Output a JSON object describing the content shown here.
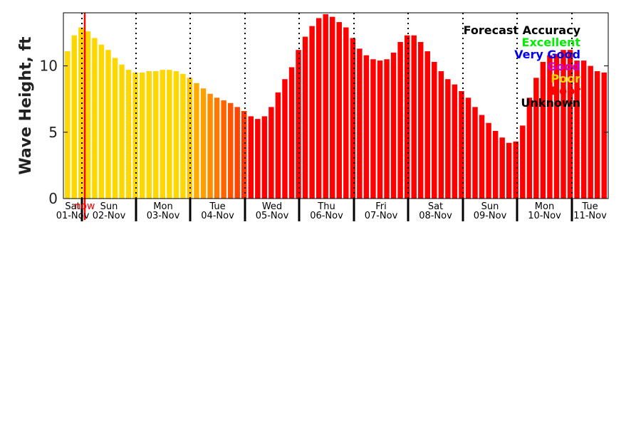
{
  "chart_data": {
    "type": "bar",
    "ylabel": "Wave Height, ft",
    "ylim": [
      0,
      14
    ],
    "yticks": [
      0,
      5,
      10
    ],
    "now_label": "now",
    "days": [
      {
        "name": "Sat",
        "date": "01-Nov"
      },
      {
        "name": "Sun",
        "date": "02-Nov"
      },
      {
        "name": "Mon",
        "date": "03-Nov"
      },
      {
        "name": "Tue",
        "date": "04-Nov"
      },
      {
        "name": "Wed",
        "date": "05-Nov"
      },
      {
        "name": "Thu",
        "date": "06-Nov"
      },
      {
        "name": "Fri",
        "date": "07-Nov"
      },
      {
        "name": "Sat",
        "date": "08-Nov"
      },
      {
        "name": "Sun",
        "date": "09-Nov"
      },
      {
        "name": "Mon",
        "date": "10-Nov"
      },
      {
        "name": "Tue",
        "date": "11-Nov"
      }
    ],
    "legend": {
      "title": "Forecast Accuracy",
      "entries": [
        {
          "label": "Excellent",
          "color": "#00ee00"
        },
        {
          "label": "Very Good",
          "color": "#0000ee"
        },
        {
          "label": "Good",
          "color": "#cc00cc"
        },
        {
          "label": "Poor",
          "color": "#ffd700"
        },
        {
          "label": "Poor",
          "color": "#ff0000"
        },
        {
          "label": "Unknown",
          "color": "#000000"
        }
      ]
    },
    "values": [
      11.1,
      12.3,
      12.9,
      12.6,
      12.1,
      11.6,
      11.2,
      10.6,
      10.1,
      9.7,
      9.5,
      9.5,
      9.6,
      9.6,
      9.7,
      9.7,
      9.6,
      9.4,
      9.1,
      8.7,
      8.3,
      7.9,
      7.6,
      7.4,
      7.2,
      6.9,
      6.6,
      6.2,
      6.0,
      6.2,
      6.9,
      8.0,
      9.0,
      9.9,
      11.2,
      12.2,
      13.0,
      13.6,
      13.9,
      13.7,
      13.3,
      12.9,
      12.1,
      11.3,
      10.8,
      10.5,
      10.4,
      10.5,
      11.0,
      11.8,
      12.3,
      12.3,
      11.8,
      11.1,
      10.3,
      9.6,
      9.0,
      8.6,
      8.1,
      7.6,
      6.9,
      6.3,
      5.7,
      5.1,
      4.6,
      4.2,
      4.3,
      5.5,
      7.6,
      9.1,
      10.3,
      10.8,
      10.9,
      11.2,
      11.2,
      10.4,
      10.4,
      10.0,
      9.6,
      9.5
    ],
    "colors": [
      "#ffd700",
      "#ffd700",
      "#ffd700",
      "#ffd700",
      "#ffd700",
      "#ffd700",
      "#ffd700",
      "#ffd700",
      "#ffd700",
      "#ffd700",
      "#ffd700",
      "#ffd700",
      "#ffd700",
      "#ffd700",
      "#ffd700",
      "#ffd700",
      "#ffd700",
      "#ffd700",
      "#ffc400",
      "#ffaa00",
      "#ffa000",
      "#ff8c00",
      "#ff7800",
      "#ff6400",
      "#ff5500",
      "#ff4400",
      "#ff3300",
      "#ff0000",
      "#ff0000",
      "#ff0000",
      "#ff0000",
      "#ff0000",
      "#ff0000",
      "#ff0000",
      "#ff0000",
      "#ff0000",
      "#ff0000",
      "#ff0000",
      "#ff0000",
      "#ff0000",
      "#ff0000",
      "#ff0000",
      "#ff0000",
      "#ff0000",
      "#ff0000",
      "#ff0000",
      "#ff0000",
      "#ff0000",
      "#ff0000",
      "#ff0000",
      "#ff0000",
      "#ff0000",
      "#ff0000",
      "#ff0000",
      "#ff0000",
      "#ff0000",
      "#ff0000",
      "#ff0000",
      "#ff0000",
      "#ff0000",
      "#ff0000",
      "#ff0000",
      "#ff0000",
      "#ff0000",
      "#ff0000",
      "#ff0000",
      "#ff0000",
      "#ff0000",
      "#ff0000",
      "#ff0000",
      "#ff0000",
      "#ff0000",
      "#ff0000",
      "#ff0000",
      "#ff0000",
      "#ff0000",
      "#ff0000",
      "#ff0000",
      "#ff0000",
      "#ff0000"
    ]
  }
}
